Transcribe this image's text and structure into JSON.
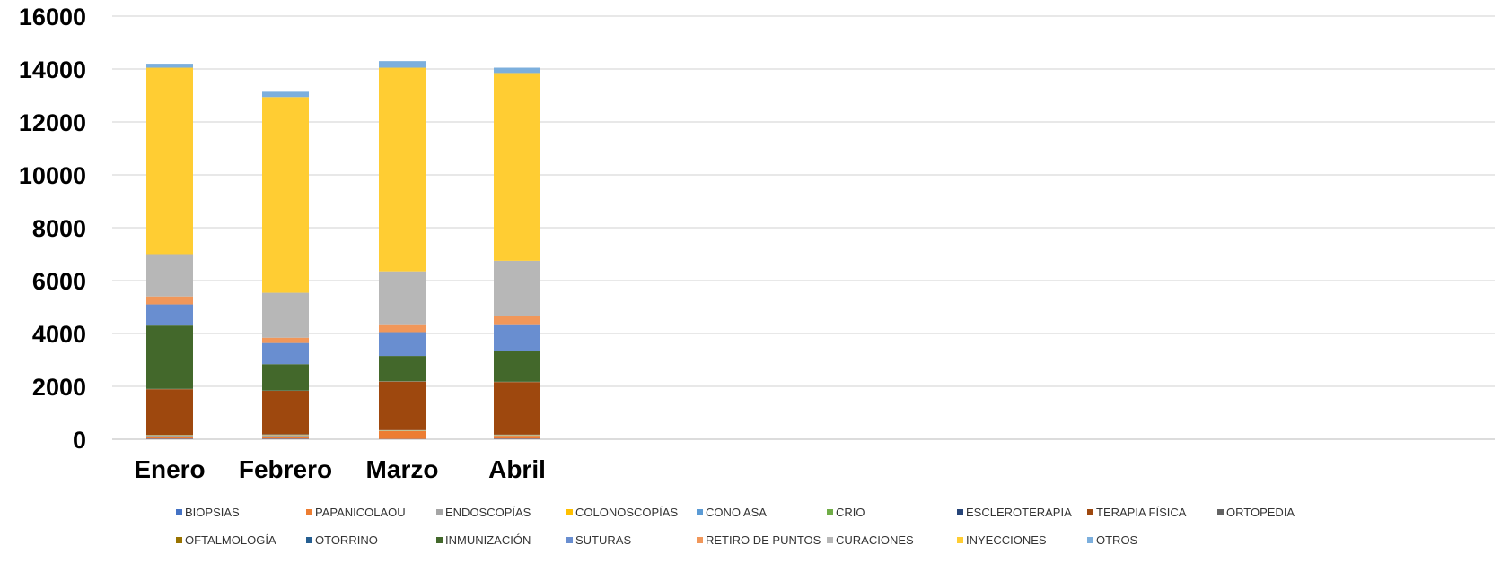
{
  "chart_data": {
    "type": "bar",
    "stacked": true,
    "title": "",
    "xlabel": "",
    "ylabel": "",
    "ylim": [
      0,
      16000
    ],
    "yticks": [
      0,
      2000,
      4000,
      6000,
      8000,
      10000,
      12000,
      14000,
      16000
    ],
    "grid": true,
    "legend_position": "bottom",
    "categories": [
      "Enero",
      "Febrero",
      "Marzo",
      "Abril"
    ],
    "series": [
      {
        "name": "BIOPSIAS",
        "color": "#4472C4",
        "values": [
          20,
          20,
          10,
          20
        ]
      },
      {
        "name": "PAPANICOLAOU",
        "color": "#ED7D31",
        "values": [
          60,
          80,
          300,
          110
        ]
      },
      {
        "name": "ENDOSCOPÍAS",
        "color": "#A5A5A5",
        "values": [
          60,
          60,
          10,
          20
        ]
      },
      {
        "name": "COLONOSCOPÍAS",
        "color": "#FFC000",
        "values": [
          10,
          10,
          10,
          10
        ]
      },
      {
        "name": "CONO ASA",
        "color": "#5B9BD5",
        "values": [
          5,
          5,
          5,
          5
        ]
      },
      {
        "name": "CRIO",
        "color": "#70AD47",
        "values": [
          5,
          5,
          5,
          5
        ]
      },
      {
        "name": "ESCLEROTERAPIA",
        "color": "#264478",
        "values": [
          5,
          5,
          5,
          5
        ]
      },
      {
        "name": "TERAPIA FÍSICA",
        "color": "#9E480E",
        "values": [
          1725,
          1645,
          1835,
          1985
        ]
      },
      {
        "name": "ORTOPEDIA",
        "color": "#636363",
        "values": [
          5,
          5,
          5,
          5
        ]
      },
      {
        "name": "OFTALMOLOGÍA",
        "color": "#997300",
        "values": [
          5,
          5,
          5,
          5
        ]
      },
      {
        "name": "OTORRINO",
        "color": "#255E91",
        "values": [
          5,
          5,
          5,
          5
        ]
      },
      {
        "name": "INMUNIZACIÓN",
        "color": "#43682B",
        "values": [
          2395,
          995,
          955,
          1175
        ]
      },
      {
        "name": "SUTURAS",
        "color": "#698ED0",
        "values": [
          800,
          800,
          900,
          1000
        ]
      },
      {
        "name": "RETIRO DE PUNTOS",
        "color": "#F1975A",
        "values": [
          300,
          200,
          300,
          300
        ]
      },
      {
        "name": "CURACIONES",
        "color": "#B7B7B7",
        "values": [
          1600,
          1700,
          2000,
          2100
        ]
      },
      {
        "name": "INYECCIONES",
        "color": "#FFCD33",
        "values": [
          7050,
          7400,
          7700,
          7100
        ]
      },
      {
        "name": "OTROS",
        "color": "#7CAFDD",
        "values": [
          150,
          200,
          250,
          200
        ]
      }
    ]
  }
}
